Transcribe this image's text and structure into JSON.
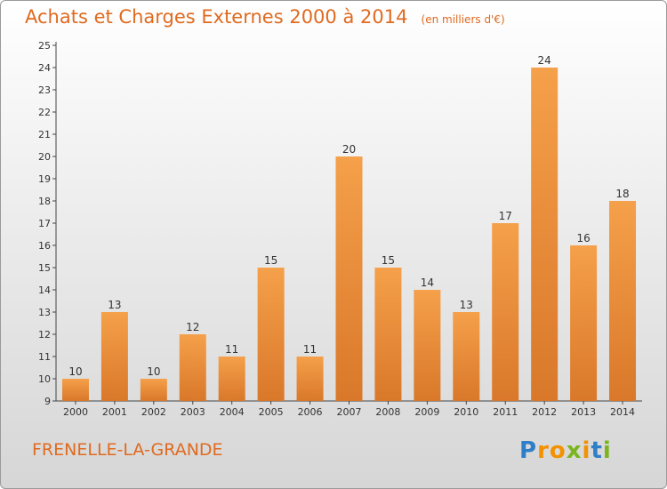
{
  "title": "Achats et Charges Externes 2000 à 2014",
  "unit_label": "(en milliers d'€)",
  "commune": "FRENELLE-LA-GRANDE",
  "logo_text": "Proxiti",
  "colors": {
    "text_accent": "#e06a1f",
    "bar_light": "#f5a04a",
    "bar_dark": "#d9782a",
    "logo_blue": "#2f7fc8",
    "logo_orange": "#f39200",
    "logo_green": "#7ab51d"
  },
  "chart_data": {
    "type": "bar",
    "categories": [
      "2000",
      "2001",
      "2002",
      "2003",
      "2004",
      "2005",
      "2006",
      "2007",
      "2008",
      "2009",
      "2010",
      "2011",
      "2012",
      "2013",
      "2014"
    ],
    "values": [
      10,
      13,
      10,
      12,
      11,
      15,
      11,
      20,
      15,
      14,
      13,
      17,
      24,
      16,
      18
    ],
    "title": "Achats et Charges Externes 2000 à 2014",
    "ylim": [
      9,
      25
    ],
    "yticks": [
      9,
      10,
      11,
      12,
      13,
      14,
      15,
      16,
      17,
      18,
      19,
      20,
      21,
      22,
      23,
      24,
      25
    ],
    "grid": false,
    "data_labels": true
  }
}
